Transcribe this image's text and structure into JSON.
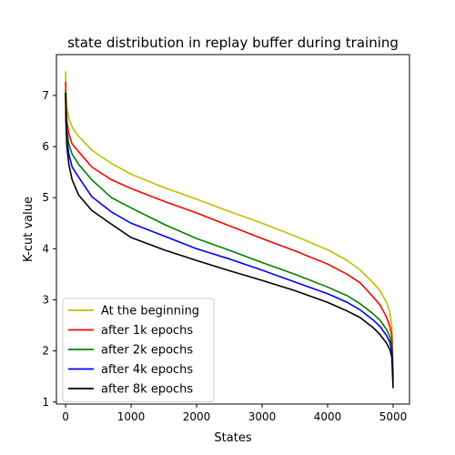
{
  "chart_data": {
    "type": "line",
    "title": "state distribution in replay buffer during training",
    "xlabel": "States",
    "ylabel": "K-cut value",
    "xlim": [
      -140,
      5250
    ],
    "ylim": [
      0.96,
      7.8
    ],
    "xticks": [
      0,
      1000,
      2000,
      3000,
      4000,
      5000
    ],
    "yticks": [
      1,
      2,
      3,
      4,
      5,
      6,
      7
    ],
    "grid": false,
    "legend_position": "lower-left",
    "series": [
      {
        "name": "At the beginning",
        "color": "#bfbf00",
        "points": [
          [
            0,
            7.47
          ],
          [
            5,
            7.1
          ],
          [
            20,
            6.75
          ],
          [
            50,
            6.55
          ],
          [
            100,
            6.38
          ],
          [
            200,
            6.2
          ],
          [
            400,
            5.93
          ],
          [
            700,
            5.67
          ],
          [
            1000,
            5.46
          ],
          [
            1500,
            5.2
          ],
          [
            2000,
            4.97
          ],
          [
            2500,
            4.73
          ],
          [
            3000,
            4.5
          ],
          [
            3500,
            4.25
          ],
          [
            4000,
            3.98
          ],
          [
            4300,
            3.77
          ],
          [
            4500,
            3.58
          ],
          [
            4700,
            3.33
          ],
          [
            4800,
            3.18
          ],
          [
            4900,
            2.95
          ],
          [
            4950,
            2.75
          ],
          [
            4980,
            2.5
          ],
          [
            5000,
            1.58
          ]
        ]
      },
      {
        "name": "after 1k epochs",
        "color": "#ff0000",
        "points": [
          [
            0,
            7.27
          ],
          [
            5,
            6.9
          ],
          [
            20,
            6.5
          ],
          [
            50,
            6.25
          ],
          [
            100,
            6.05
          ],
          [
            200,
            5.9
          ],
          [
            400,
            5.6
          ],
          [
            700,
            5.35
          ],
          [
            1000,
            5.18
          ],
          [
            1500,
            4.93
          ],
          [
            2000,
            4.7
          ],
          [
            2500,
            4.45
          ],
          [
            3000,
            4.2
          ],
          [
            3500,
            3.96
          ],
          [
            4000,
            3.7
          ],
          [
            4300,
            3.5
          ],
          [
            4500,
            3.33
          ],
          [
            4700,
            3.05
          ],
          [
            4800,
            2.9
          ],
          [
            4900,
            2.66
          ],
          [
            4950,
            2.48
          ],
          [
            4980,
            2.3
          ],
          [
            5000,
            1.52
          ]
        ]
      },
      {
        "name": "after 2k epochs",
        "color": "#008000",
        "points": [
          [
            0,
            7.1
          ],
          [
            5,
            6.7
          ],
          [
            20,
            6.3
          ],
          [
            50,
            6.05
          ],
          [
            100,
            5.85
          ],
          [
            200,
            5.65
          ],
          [
            400,
            5.35
          ],
          [
            700,
            5.0
          ],
          [
            1000,
            4.8
          ],
          [
            1500,
            4.48
          ],
          [
            2000,
            4.2
          ],
          [
            2500,
            3.97
          ],
          [
            3000,
            3.73
          ],
          [
            3500,
            3.5
          ],
          [
            4000,
            3.25
          ],
          [
            4300,
            3.08
          ],
          [
            4500,
            2.92
          ],
          [
            4700,
            2.72
          ],
          [
            4800,
            2.6
          ],
          [
            4900,
            2.42
          ],
          [
            4950,
            2.28
          ],
          [
            4980,
            2.1
          ],
          [
            5000,
            1.45
          ]
        ]
      },
      {
        "name": "after 4k epochs",
        "color": "#0000ff",
        "points": [
          [
            0,
            7.05
          ],
          [
            5,
            6.6
          ],
          [
            20,
            6.15
          ],
          [
            50,
            5.85
          ],
          [
            100,
            5.6
          ],
          [
            200,
            5.4
          ],
          [
            400,
            5.02
          ],
          [
            700,
            4.72
          ],
          [
            1000,
            4.5
          ],
          [
            1500,
            4.25
          ],
          [
            2000,
            4.0
          ],
          [
            2500,
            3.8
          ],
          [
            3000,
            3.58
          ],
          [
            3500,
            3.35
          ],
          [
            4000,
            3.12
          ],
          [
            4300,
            2.95
          ],
          [
            4500,
            2.8
          ],
          [
            4700,
            2.6
          ],
          [
            4800,
            2.48
          ],
          [
            4900,
            2.3
          ],
          [
            4950,
            2.17
          ],
          [
            4980,
            2.0
          ],
          [
            5000,
            1.38
          ]
        ]
      },
      {
        "name": "after 8k epochs",
        "color": "#000000",
        "points": [
          [
            0,
            7.05
          ],
          [
            5,
            6.5
          ],
          [
            20,
            6.0
          ],
          [
            50,
            5.65
          ],
          [
            100,
            5.35
          ],
          [
            200,
            5.05
          ],
          [
            400,
            4.75
          ],
          [
            700,
            4.48
          ],
          [
            1000,
            4.22
          ],
          [
            1500,
            3.98
          ],
          [
            2000,
            3.77
          ],
          [
            2500,
            3.57
          ],
          [
            3000,
            3.38
          ],
          [
            3500,
            3.18
          ],
          [
            4000,
            2.95
          ],
          [
            4300,
            2.78
          ],
          [
            4500,
            2.65
          ],
          [
            4700,
            2.45
          ],
          [
            4800,
            2.32
          ],
          [
            4900,
            2.15
          ],
          [
            4950,
            2.03
          ],
          [
            4980,
            1.88
          ],
          [
            5000,
            1.27
          ]
        ]
      }
    ]
  }
}
